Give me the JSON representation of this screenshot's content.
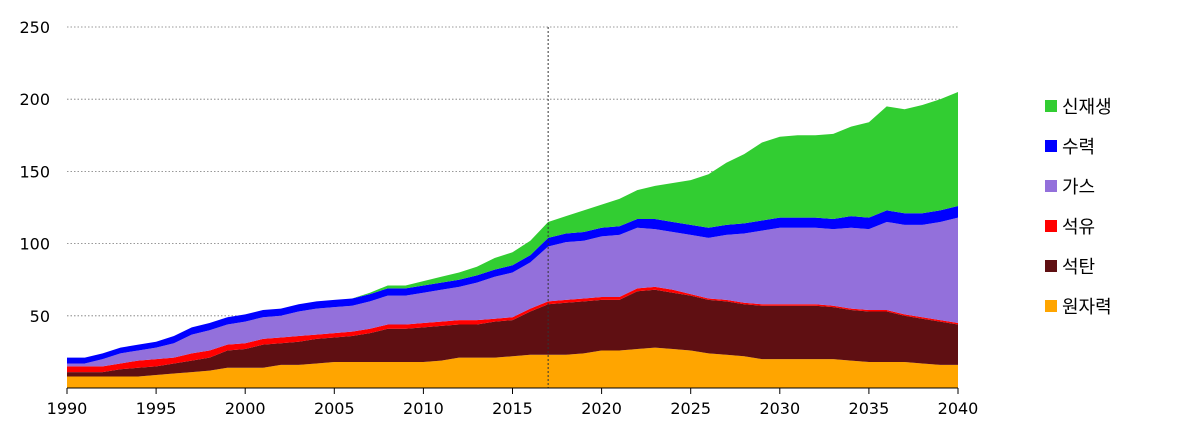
{
  "chart_data": {
    "type": "area",
    "stacked": true,
    "title": "",
    "xlabel": "",
    "ylabel": "",
    "xlim": [
      1990,
      2040
    ],
    "ylim": [
      0,
      250
    ],
    "x_ticks": [
      1990,
      1995,
      2000,
      2005,
      2010,
      2015,
      2020,
      2025,
      2030,
      2035,
      2040
    ],
    "y_ticks": [
      50,
      100,
      150,
      200,
      250
    ],
    "grid": "horizontal dotted",
    "reference_line_x": 2017,
    "legend_position": "right",
    "x": [
      1990,
      1991,
      1992,
      1993,
      1994,
      1995,
      1996,
      1997,
      1998,
      1999,
      2000,
      2001,
      2002,
      2003,
      2004,
      2005,
      2006,
      2007,
      2008,
      2009,
      2010,
      2011,
      2012,
      2013,
      2014,
      2015,
      2016,
      2017,
      2018,
      2019,
      2020,
      2021,
      2022,
      2023,
      2024,
      2025,
      2026,
      2027,
      2028,
      2029,
      2030,
      2031,
      2032,
      2033,
      2034,
      2035,
      2036,
      2037,
      2038,
      2039,
      2040
    ],
    "series": [
      {
        "name": "원자력",
        "color": "#FFA500",
        "values": [
          8,
          8,
          8,
          8,
          8,
          9,
          10,
          11,
          12,
          14,
          14,
          14,
          16,
          16,
          17,
          18,
          18,
          18,
          18,
          18,
          18,
          19,
          21,
          21,
          21,
          22,
          23,
          23,
          23,
          24,
          26,
          26,
          27,
          28,
          27,
          26,
          24,
          23,
          22,
          20,
          20,
          20,
          20,
          20,
          19,
          18,
          18,
          18,
          17,
          16,
          16
        ]
      },
      {
        "name": "석탄",
        "color": "#5F0F12",
        "values": [
          3,
          3,
          3,
          5,
          6,
          6,
          7,
          8,
          9,
          12,
          13,
          16,
          15,
          16,
          17,
          17,
          18,
          20,
          23,
          23,
          24,
          24,
          23,
          23,
          25,
          25,
          30,
          35,
          36,
          36,
          35,
          35,
          40,
          40,
          39,
          38,
          37,
          37,
          36,
          37,
          37,
          37,
          37,
          36,
          35,
          35,
          35,
          32,
          31,
          30,
          28
        ]
      },
      {
        "name": "석유",
        "color": "#FF0000",
        "values": [
          4,
          4,
          4,
          4,
          5,
          5,
          4,
          5,
          5,
          4,
          4,
          4,
          4,
          4,
          3,
          3,
          3,
          3,
          3,
          3,
          3,
          3,
          3,
          3,
          2,
          2,
          2,
          2,
          2,
          2,
          2,
          2,
          2,
          2,
          2,
          1,
          1,
          1,
          1,
          1,
          1,
          1,
          1,
          1,
          1,
          1,
          1,
          1,
          1,
          1,
          1
        ]
      },
      {
        "name": "가스",
        "color": "#9370DB",
        "values": [
          2,
          2,
          5,
          7,
          7,
          8,
          10,
          13,
          14,
          14,
          15,
          15,
          15,
          17,
          18,
          18,
          18,
          19,
          20,
          20,
          21,
          22,
          23,
          26,
          29,
          31,
          32,
          38,
          40,
          40,
          42,
          43,
          42,
          40,
          40,
          41,
          42,
          45,
          48,
          51,
          53,
          53,
          53,
          53,
          56,
          56,
          61,
          62,
          64,
          68,
          73
        ]
      },
      {
        "name": "수력",
        "color": "#0000FF",
        "values": [
          4,
          4,
          4,
          4,
          4,
          4,
          5,
          5,
          5,
          5,
          5,
          5,
          5,
          5,
          5,
          5,
          5,
          5,
          5,
          5,
          5,
          5,
          5,
          5,
          5,
          5,
          5,
          6,
          6,
          6,
          6,
          6,
          6,
          7,
          7,
          7,
          7,
          7,
          7,
          7,
          7,
          7,
          7,
          7,
          8,
          8,
          8,
          8,
          8,
          8,
          8
        ]
      },
      {
        "name": "신재생",
        "color": "#32CD32",
        "values": [
          0,
          0,
          0,
          0,
          0,
          0,
          0,
          0,
          0,
          0,
          0,
          0,
          0,
          0,
          0,
          0,
          0,
          1,
          2,
          2,
          3,
          4,
          5,
          6,
          8,
          9,
          10,
          11,
          12,
          15,
          16,
          19,
          20,
          23,
          27,
          31,
          37,
          43,
          48,
          54,
          56,
          57,
          57,
          59,
          62,
          66,
          72,
          72,
          75,
          77,
          79
        ]
      }
    ],
    "legend_order": [
      "신재생",
      "수력",
      "가스",
      "석유",
      "석탄",
      "원자력"
    ]
  }
}
